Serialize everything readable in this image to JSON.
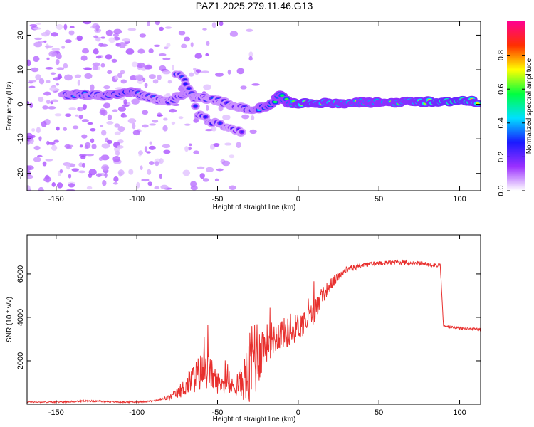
{
  "title": "PAZ1.2025.279.11.46.G13",
  "colors": {
    "snr_line": "#e8302e",
    "axes": "#000000"
  },
  "chart_data": [
    {
      "type": "heatmap",
      "xlabel": "Height of straight line (km)",
      "ylabel": "Frequency (Hz)",
      "xlim": [
        -168,
        113
      ],
      "ylim": [
        -25,
        24
      ],
      "x_ticks": [
        "-150",
        "-100",
        "-50",
        "0",
        "50",
        "100"
      ],
      "y_ticks": [
        "-20",
        "-10",
        "0",
        "10",
        "20"
      ],
      "colorbar": {
        "label": "Normalized spectral amplitude",
        "range": [
          0,
          1
        ],
        "ticks": [
          "0.0",
          "0.2",
          "0.4",
          "0.6",
          "0.8"
        ],
        "colormap": [
          "#ffffff",
          "#9b30ff",
          "#1a1aff",
          "#00e0ff",
          "#00ff40",
          "#ffff00",
          "#ff3000",
          "#ff0090"
        ]
      },
      "main_track": [
        {
          "x": -144,
          "f": 2.5,
          "a": 0.35
        },
        {
          "x": -135,
          "f": 3.0,
          "a": 0.4
        },
        {
          "x": -124,
          "f": 2.5,
          "a": 0.35
        },
        {
          "x": -115,
          "f": 3.0,
          "a": 0.4
        },
        {
          "x": -105,
          "f": 3.5,
          "a": 0.45
        },
        {
          "x": -95,
          "f": 2.5,
          "a": 0.35
        },
        {
          "x": -88,
          "f": 1.5,
          "a": 0.3
        },
        {
          "x": -80,
          "f": 1.0,
          "a": 0.3
        },
        {
          "x": -70,
          "f": 3.0,
          "a": 0.35
        },
        {
          "x": -60,
          "f": 2.0,
          "a": 0.3
        },
        {
          "x": -50,
          "f": 1.0,
          "a": 0.3
        },
        {
          "x": -42,
          "f": 0.0,
          "a": 0.3
        },
        {
          "x": -35,
          "f": -1.0,
          "a": 0.3
        },
        {
          "x": -28,
          "f": -1.5,
          "a": 0.35
        },
        {
          "x": -22,
          "f": -1.0,
          "a": 0.45
        },
        {
          "x": -16,
          "f": 0.5,
          "a": 0.5
        },
        {
          "x": -11,
          "f": 2.5,
          "a": 0.55
        },
        {
          "x": -6,
          "f": 0.5,
          "a": 0.55
        },
        {
          "x": 0,
          "f": 0.0,
          "a": 0.7
        },
        {
          "x": 6,
          "f": 0.5,
          "a": 0.72
        },
        {
          "x": 14,
          "f": 0.5,
          "a": 0.68
        },
        {
          "x": 25,
          "f": 0.0,
          "a": 0.65
        },
        {
          "x": 40,
          "f": 0.5,
          "a": 0.62
        },
        {
          "x": 55,
          "f": 0.5,
          "a": 0.63
        },
        {
          "x": 70,
          "f": 0.8,
          "a": 0.66
        },
        {
          "x": 85,
          "f": 0.8,
          "a": 0.75
        },
        {
          "x": 100,
          "f": 0.8,
          "a": 0.8
        },
        {
          "x": 112,
          "f": 0.8,
          "a": 0.72
        }
      ],
      "secondary_track": [
        {
          "x": -75,
          "f": 9.0,
          "a": 0.3
        },
        {
          "x": -68,
          "f": 5.0,
          "a": 0.3
        },
        {
          "x": -62,
          "f": -3.0,
          "a": 0.3
        },
        {
          "x": -55,
          "f": -5.0,
          "a": 0.3
        },
        {
          "x": -48,
          "f": -6.0,
          "a": 0.3
        },
        {
          "x": -40,
          "f": -7.5,
          "a": 0.25
        },
        {
          "x": -33,
          "f": -8.0,
          "a": 0.25
        }
      ]
    },
    {
      "type": "line",
      "xlabel": "Height of straight line (km)",
      "ylabel": "SNR (10 * v/v)",
      "xlim": [
        -168,
        113
      ],
      "ylim": [
        0,
        7800
      ],
      "x_ticks": [
        "-150",
        "-100",
        "-50",
        "0",
        "50",
        "100"
      ],
      "y_ticks": [
        "2000",
        "4000",
        "6000"
      ],
      "series": [
        {
          "x": [
            -168,
            -150,
            -130,
            -110,
            -100,
            -90,
            -80,
            -75,
            -70,
            -65,
            -60,
            -55,
            -50,
            -45,
            -40,
            -35,
            -30,
            -27,
            -25,
            -20,
            -15,
            -10,
            -5,
            0,
            5,
            10,
            15,
            20,
            25,
            30,
            35,
            40,
            50,
            60,
            70,
            80,
            88,
            89,
            90,
            100,
            113
          ],
          "y": [
            100,
            100,
            150,
            100,
            100,
            150,
            300,
            500,
            800,
            1200,
            1500,
            1500,
            1000,
            900,
            800,
            1000,
            1500,
            2500,
            2300,
            2800,
            3100,
            3300,
            3300,
            3600,
            3800,
            4300,
            5000,
            5500,
            5900,
            6200,
            6300,
            6400,
            6500,
            6550,
            6500,
            6450,
            6400,
            5000,
            3600,
            3500,
            3450
          ],
          "noise": [
            30,
            30,
            40,
            30,
            30,
            40,
            120,
            250,
            450,
            700,
            900,
            800,
            500,
            400,
            400,
            700,
            1800,
            2500,
            1500,
            900,
            800,
            700,
            700,
            650,
            600,
            550,
            400,
            300,
            200,
            160,
            140,
            110,
            100,
            100,
            100,
            100,
            100,
            0,
            60,
            60,
            60
          ]
        }
      ]
    }
  ]
}
